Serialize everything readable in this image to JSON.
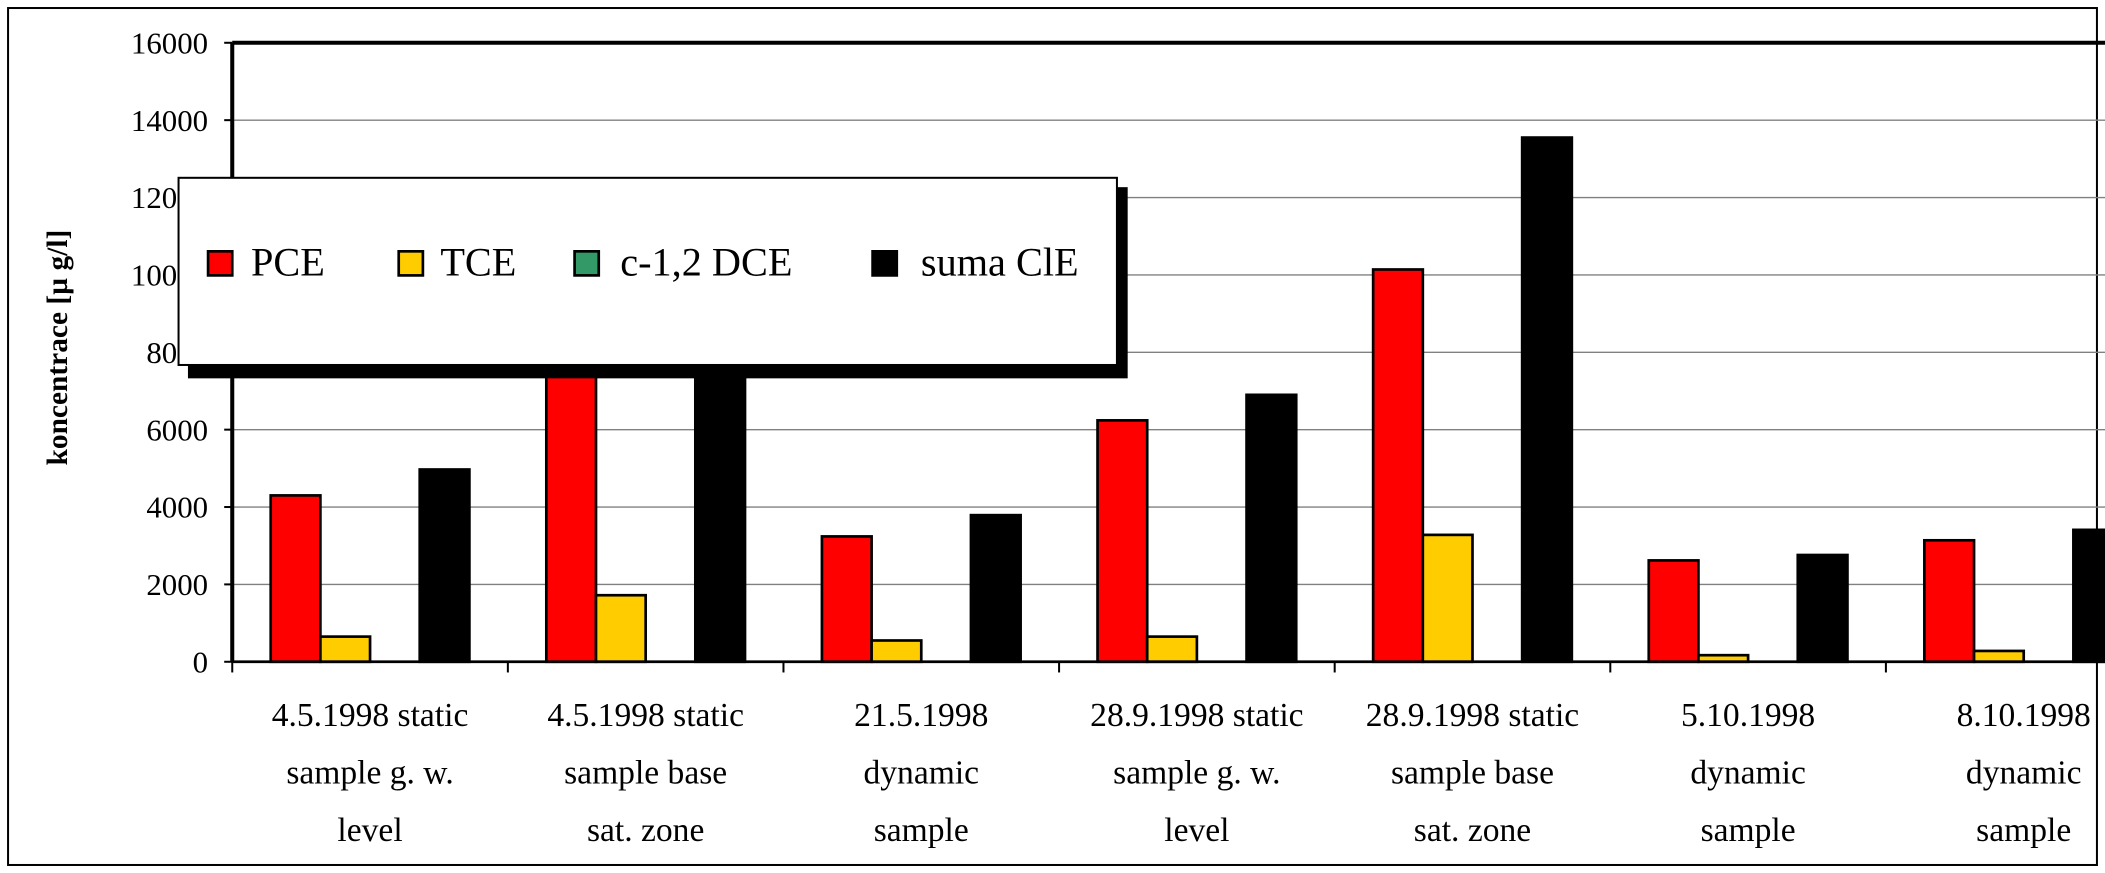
{
  "chart_data": {
    "type": "bar",
    "y_label": "koncentrace [µ g/l]",
    "categories": [
      "4.5.1998 static\nsample g. w.\nlevel",
      "4.5.1998 static\nsample base\nsat. zone",
      "21.5.1998\ndynamic\nsample",
      "28.9.1998 static\nsample g. w.\nlevel",
      "28.9.1998 static\nsample base\nsat. zone",
      "5.10.1998\ndynamic\nsample",
      "8.10.1998\ndynamic\nsample"
    ],
    "series": [
      {
        "name": "PCE",
        "color": "#ff0000",
        "values": [
          4300,
          8500,
          3240,
          6240,
          10140,
          2620,
          3140
        ]
      },
      {
        "name": "TCE",
        "color": "#ffcc00",
        "values": [
          650,
          1720,
          550,
          650,
          3280,
          170,
          280
        ]
      },
      {
        "name": "c-1,2 DCE",
        "color": "#339966",
        "values": [
          0,
          0,
          0,
          0,
          0,
          0,
          0
        ]
      },
      {
        "name": "suma ClE",
        "color": "#000000",
        "values": [
          4970,
          10300,
          3790,
          6900,
          13550,
          2760,
          3410
        ]
      }
    ],
    "ylim": [
      0,
      16000
    ],
    "yticks": [
      0,
      2000,
      4000,
      6000,
      8000,
      10000,
      12000,
      14000,
      16000
    ],
    "grid": true
  }
}
